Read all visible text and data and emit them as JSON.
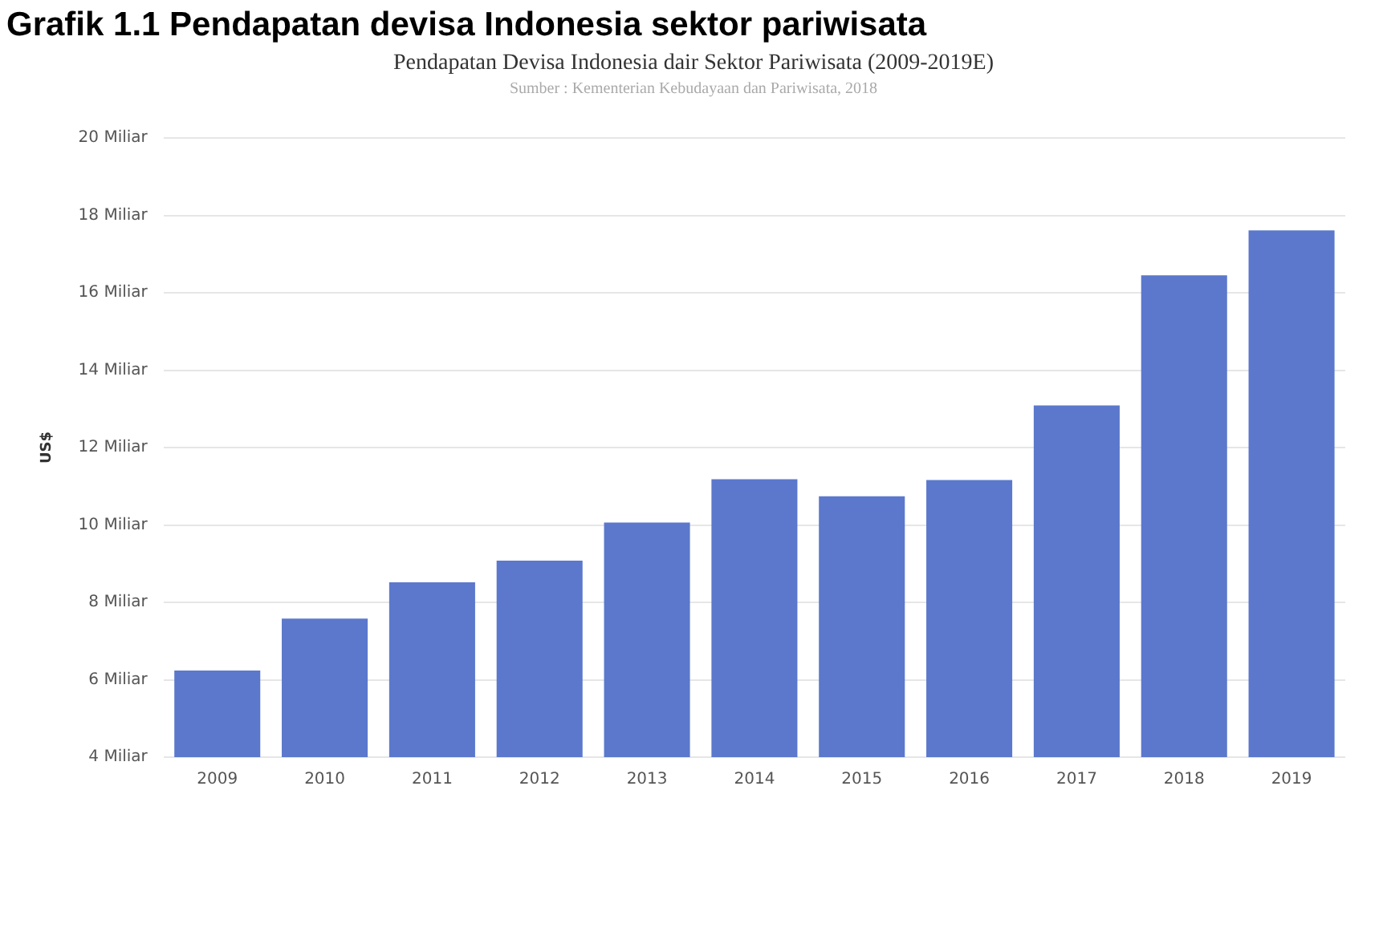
{
  "chart_data": {
    "type": "bar",
    "title": "Grafik 1.1 Pendapatan devisa Indonesia sektor pariwisata",
    "subtitle": "Pendapatan Devisa Indonesia dair Sektor Pariwisata (2009-2019E)",
    "annotations": [
      "Sumber : Kementerian Kebudayaan dan Pariwisata, 2018"
    ],
    "ylabel": "US$",
    "categories": [
      "2009",
      "2010",
      "2011",
      "2012",
      "2013",
      "2014",
      "2015",
      "2016",
      "2017",
      "2018",
      "2019"
    ],
    "values": [
      6.24,
      7.58,
      8.52,
      9.08,
      10.06,
      11.18,
      10.74,
      11.16,
      13.09,
      16.45,
      17.61
    ],
    "color": "#5b78cc",
    "ylim": [
      4,
      20
    ],
    "yticks": [
      {
        "value": 4,
        "label": "4 Miliar"
      },
      {
        "value": 6,
        "label": "6 Miliar"
      },
      {
        "value": 8,
        "label": "8 Miliar"
      },
      {
        "value": 10,
        "label": "10 Miliar"
      },
      {
        "value": 12,
        "label": "12 Miliar"
      },
      {
        "value": 14,
        "label": "14 Miliar"
      },
      {
        "value": 16,
        "label": "16 Miliar"
      },
      {
        "value": 18,
        "label": "18 Miliar"
      },
      {
        "value": 20,
        "label": "20 Miliar"
      }
    ],
    "grid": "y"
  }
}
